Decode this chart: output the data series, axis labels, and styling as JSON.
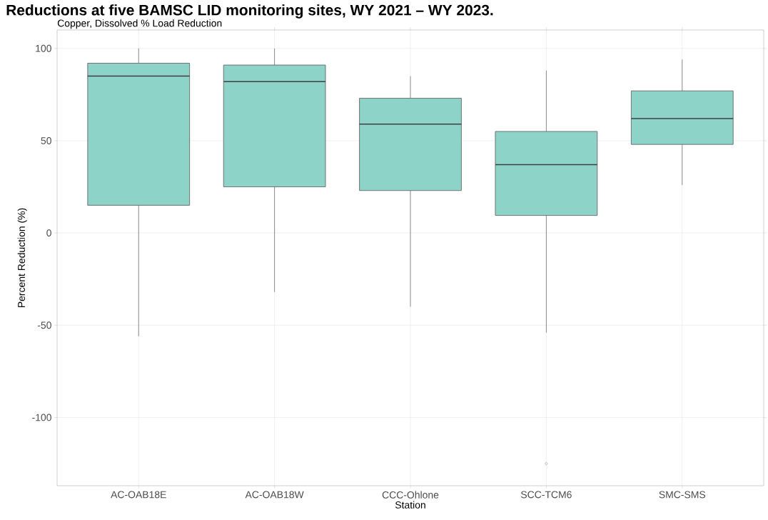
{
  "chart_data": {
    "type": "box",
    "title": "Reductions at five BAMSC LID monitoring sites, WY 2021 – WY 2023.",
    "subtitle": "Copper, Dissolved % Load Reduction",
    "xlabel": "Station",
    "ylabel": "Percent Reduction (%)",
    "categories": [
      "AC-OAB18E",
      "AC-OAB18W",
      "CCC-Ohlone",
      "SCC-TCM6",
      "SMC-SMS"
    ],
    "boxes": [
      {
        "low": -56,
        "q1": 15,
        "median": 85,
        "q3": 92,
        "high": 100
      },
      {
        "low": -32,
        "q1": 25,
        "median": 82,
        "q3": 91,
        "high": 100
      },
      {
        "low": -40,
        "q1": 23,
        "median": 59,
        "q3": 73,
        "high": 85
      },
      {
        "low": -54,
        "q1": 9.5,
        "median": 37,
        "q3": 55,
        "high": 88,
        "outliers": [
          -125
        ]
      },
      {
        "low": 26,
        "q1": 48,
        "median": 62,
        "q3": 77,
        "high": 94
      }
    ],
    "color": "#8dd3c7",
    "ylim": [
      -137,
      110
    ],
    "yticks": [
      -100,
      -50,
      0,
      50,
      100
    ],
    "grid": true
  }
}
